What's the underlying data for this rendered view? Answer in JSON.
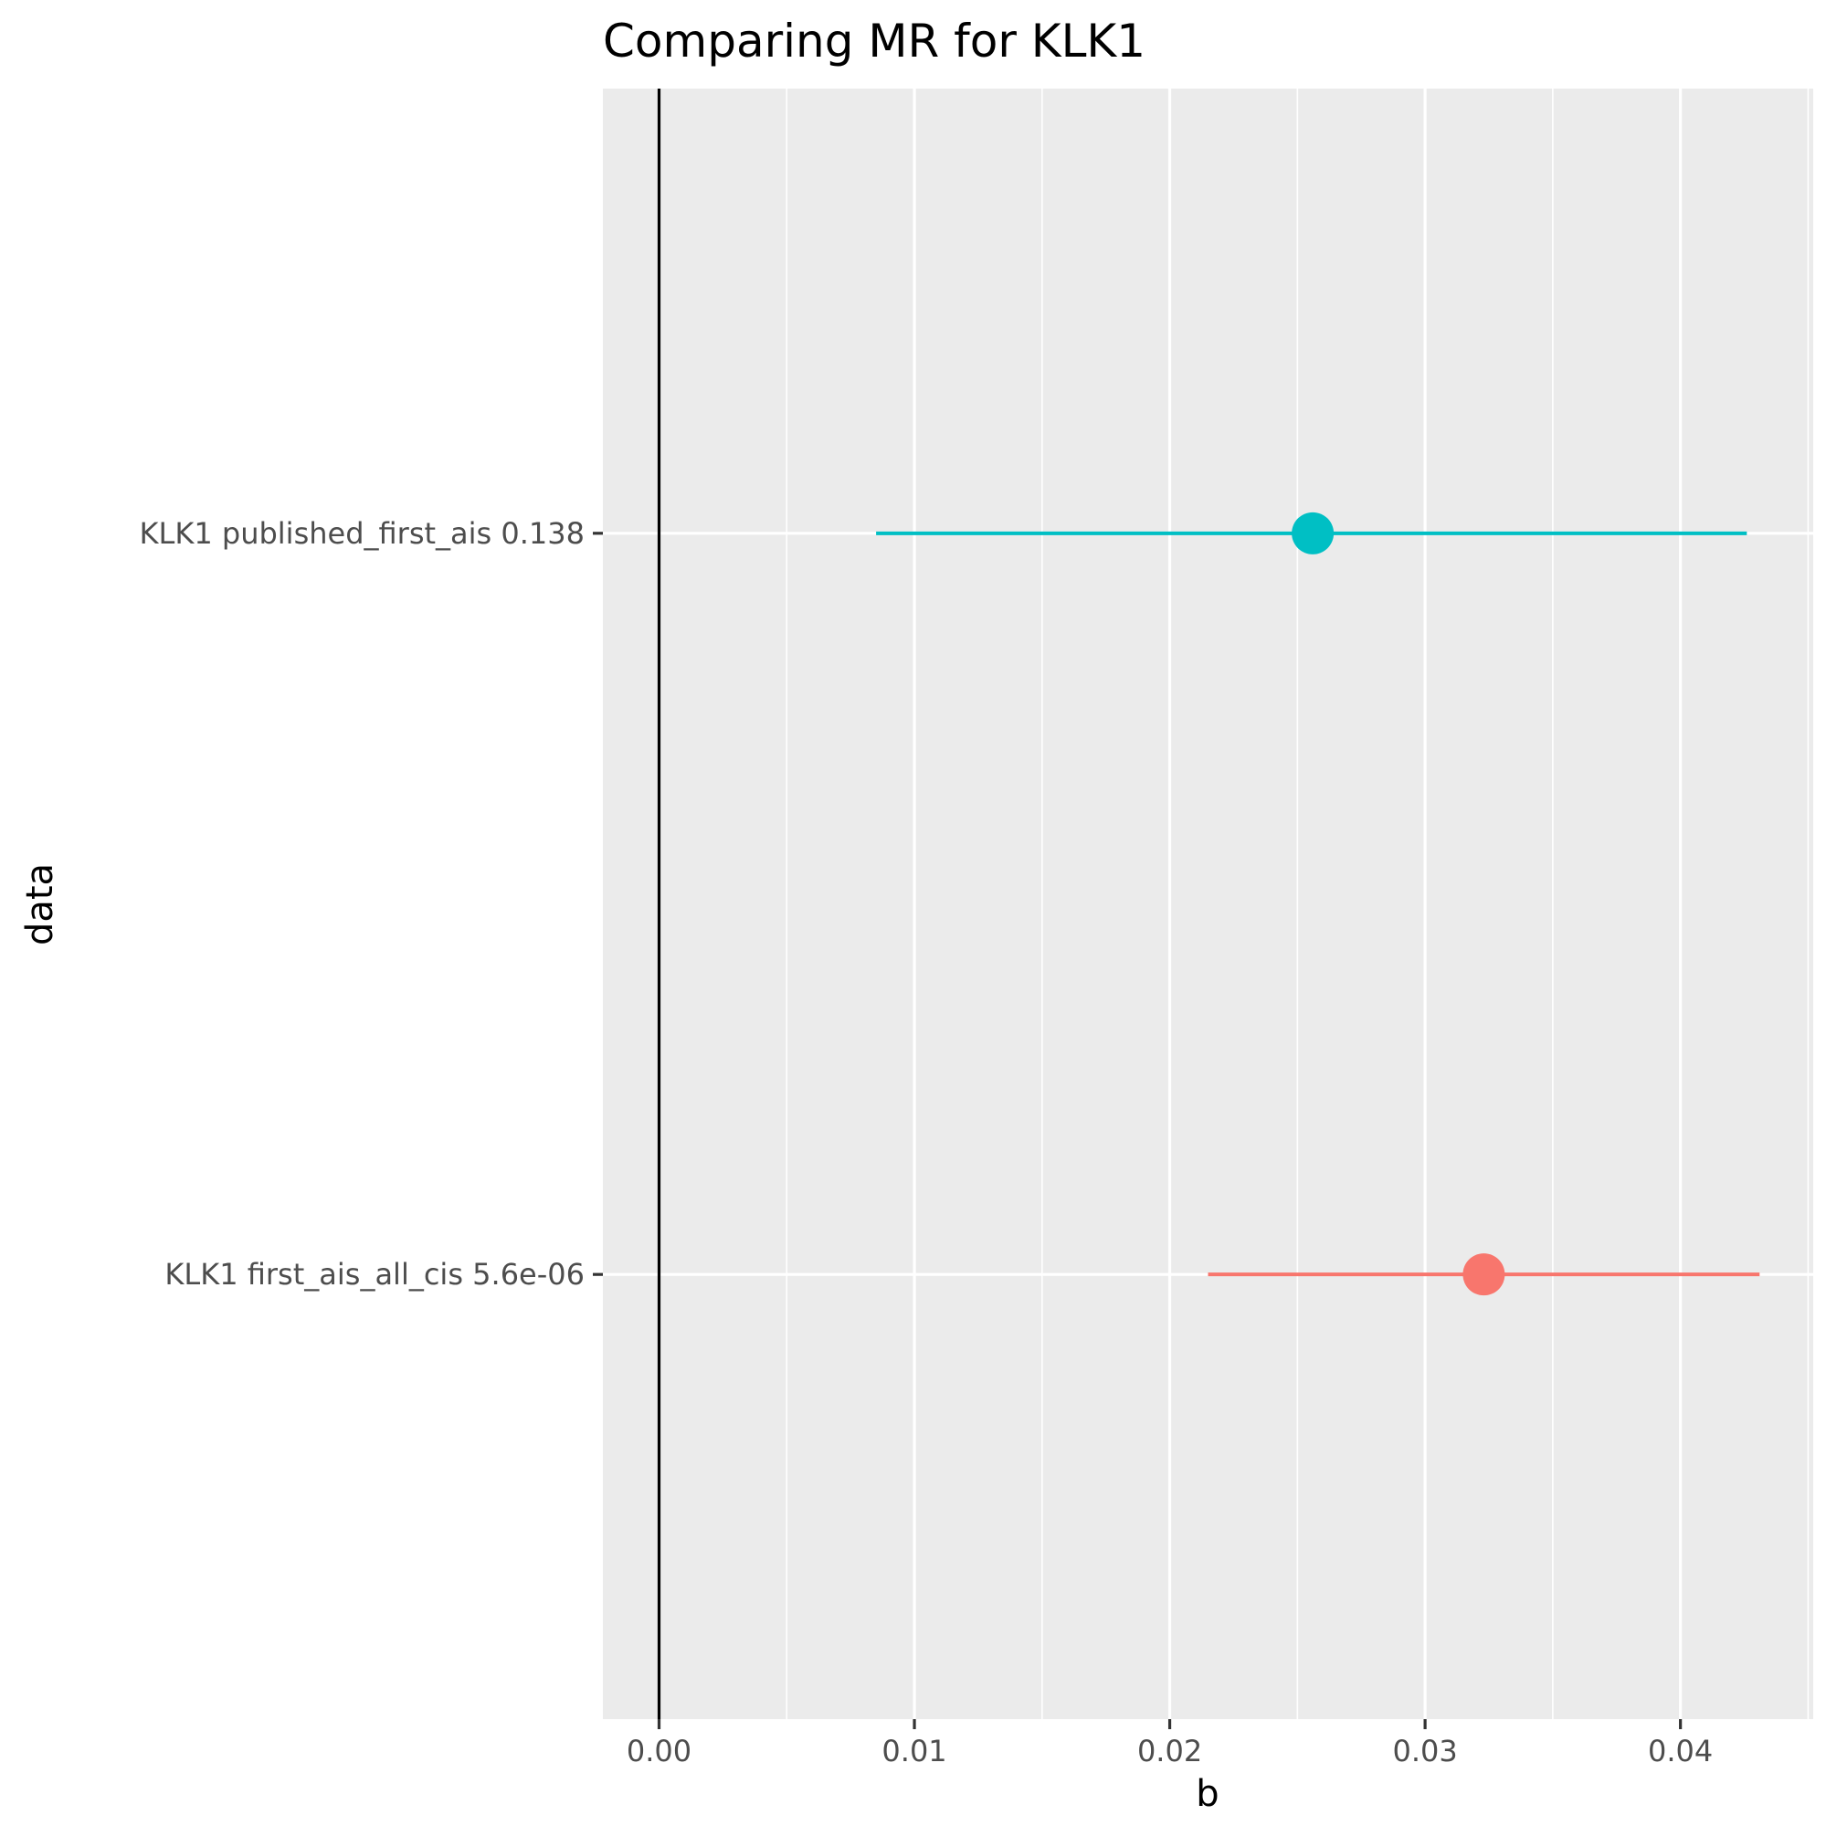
{
  "chart_data": {
    "type": "forest",
    "title": "Comparing MR for KLK1",
    "xlabel": "b",
    "ylabel": "data",
    "xlim": [
      -0.0022,
      0.0452
    ],
    "x_ticks": [
      0.0,
      0.01,
      0.02,
      0.03,
      0.04
    ],
    "x_tick_labels": [
      "0.00",
      "0.01",
      "0.02",
      "0.03",
      "0.04"
    ],
    "reference_line_x": 0,
    "grid": true,
    "legend": "none",
    "categories": [
      "KLK1 published_first_ais 0.138",
      "KLK1 first_ais_all_cis 5.6e-06"
    ],
    "series": [
      {
        "category": "KLK1 published_first_ais 0.138",
        "b": 0.0256,
        "lo": 0.0085,
        "hi": 0.0426,
        "color": "#00BFC4"
      },
      {
        "category": "KLK1 first_ais_all_cis 5.6e-06",
        "b": 0.0323,
        "lo": 0.0215,
        "hi": 0.0431,
        "color": "#F8766D"
      }
    ],
    "panel_color": "#EBEBEB",
    "gridline_color": "#FFFFFF"
  }
}
